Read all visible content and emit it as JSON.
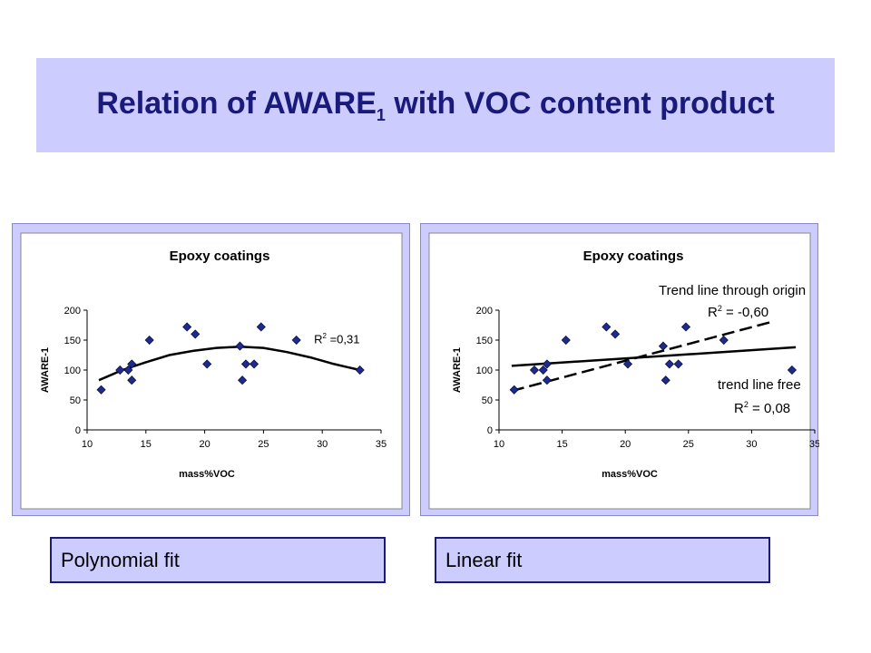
{
  "slide": {
    "title_prefix": "Relation of AWARE",
    "title_sub": "1",
    "title_suffix": " with VOC content product"
  },
  "captions": [
    "Polynomial fit",
    "Linear fit"
  ],
  "chart_data": [
    {
      "type": "scatter",
      "title": "Epoxy coatings",
      "xlabel": "mass%VOC",
      "ylabel": "AWARE-1",
      "xlim": [
        10,
        35
      ],
      "ylim": [
        0,
        200
      ],
      "xticks": [
        10,
        15,
        20,
        25,
        30,
        35
      ],
      "yticks": [
        0,
        50,
        100,
        150,
        200
      ],
      "points": [
        [
          11.2,
          67
        ],
        [
          12.8,
          100
        ],
        [
          13.5,
          100
        ],
        [
          13.8,
          110
        ],
        [
          13.8,
          83
        ],
        [
          15.3,
          150
        ],
        [
          18.5,
          172
        ],
        [
          19.2,
          160
        ],
        [
          20.2,
          110
        ],
        [
          23.0,
          140
        ],
        [
          23.2,
          83
        ],
        [
          23.5,
          110
        ],
        [
          24.2,
          110
        ],
        [
          24.8,
          172
        ],
        [
          27.8,
          150
        ],
        [
          33.2,
          100
        ]
      ],
      "fit": {
        "kind": "polynomial",
        "label_sup": "2",
        "label": "R2 =0,31",
        "label_prefix": "R",
        "label_suffix": " =0,31",
        "curve": [
          [
            11,
            83
          ],
          [
            13,
            100
          ],
          [
            15,
            113
          ],
          [
            17,
            125
          ],
          [
            19,
            132
          ],
          [
            21,
            137
          ],
          [
            23,
            139
          ],
          [
            25,
            137
          ],
          [
            27,
            130
          ],
          [
            29,
            121
          ],
          [
            31,
            110
          ],
          [
            33.2,
            100
          ]
        ]
      },
      "grid": false,
      "legend": "none"
    },
    {
      "type": "scatter",
      "title": "Epoxy coatings",
      "xlabel": "mass%VOC",
      "ylabel": "AWARE-1",
      "xlim": [
        10,
        35
      ],
      "ylim": [
        0,
        200
      ],
      "xticks": [
        10,
        15,
        20,
        25,
        30,
        35
      ],
      "yticks": [
        0,
        50,
        100,
        150,
        200
      ],
      "points": [
        [
          11.2,
          67
        ],
        [
          12.8,
          100
        ],
        [
          13.5,
          100
        ],
        [
          13.8,
          110
        ],
        [
          13.8,
          83
        ],
        [
          15.3,
          150
        ],
        [
          18.5,
          172
        ],
        [
          19.2,
          160
        ],
        [
          20.2,
          110
        ],
        [
          23.0,
          140
        ],
        [
          23.2,
          83
        ],
        [
          23.5,
          110
        ],
        [
          24.2,
          110
        ],
        [
          24.8,
          172
        ],
        [
          27.8,
          150
        ],
        [
          33.2,
          100
        ]
      ],
      "trend_lines": [
        {
          "name": "Trend line through origin",
          "style": "dashed",
          "from": [
            11,
            65
          ],
          "to": [
            31.5,
            180
          ],
          "label_prefix": "R",
          "label_sup": "2",
          "label_suffix": " = -0,60"
        },
        {
          "name": "trend line free",
          "style": "solid",
          "from": [
            11,
            107
          ],
          "to": [
            33.5,
            138
          ],
          "label_prefix": "R",
          "label_sup": "2",
          "label_suffix": " = 0,08"
        }
      ],
      "grid": false,
      "legend": "none"
    }
  ]
}
